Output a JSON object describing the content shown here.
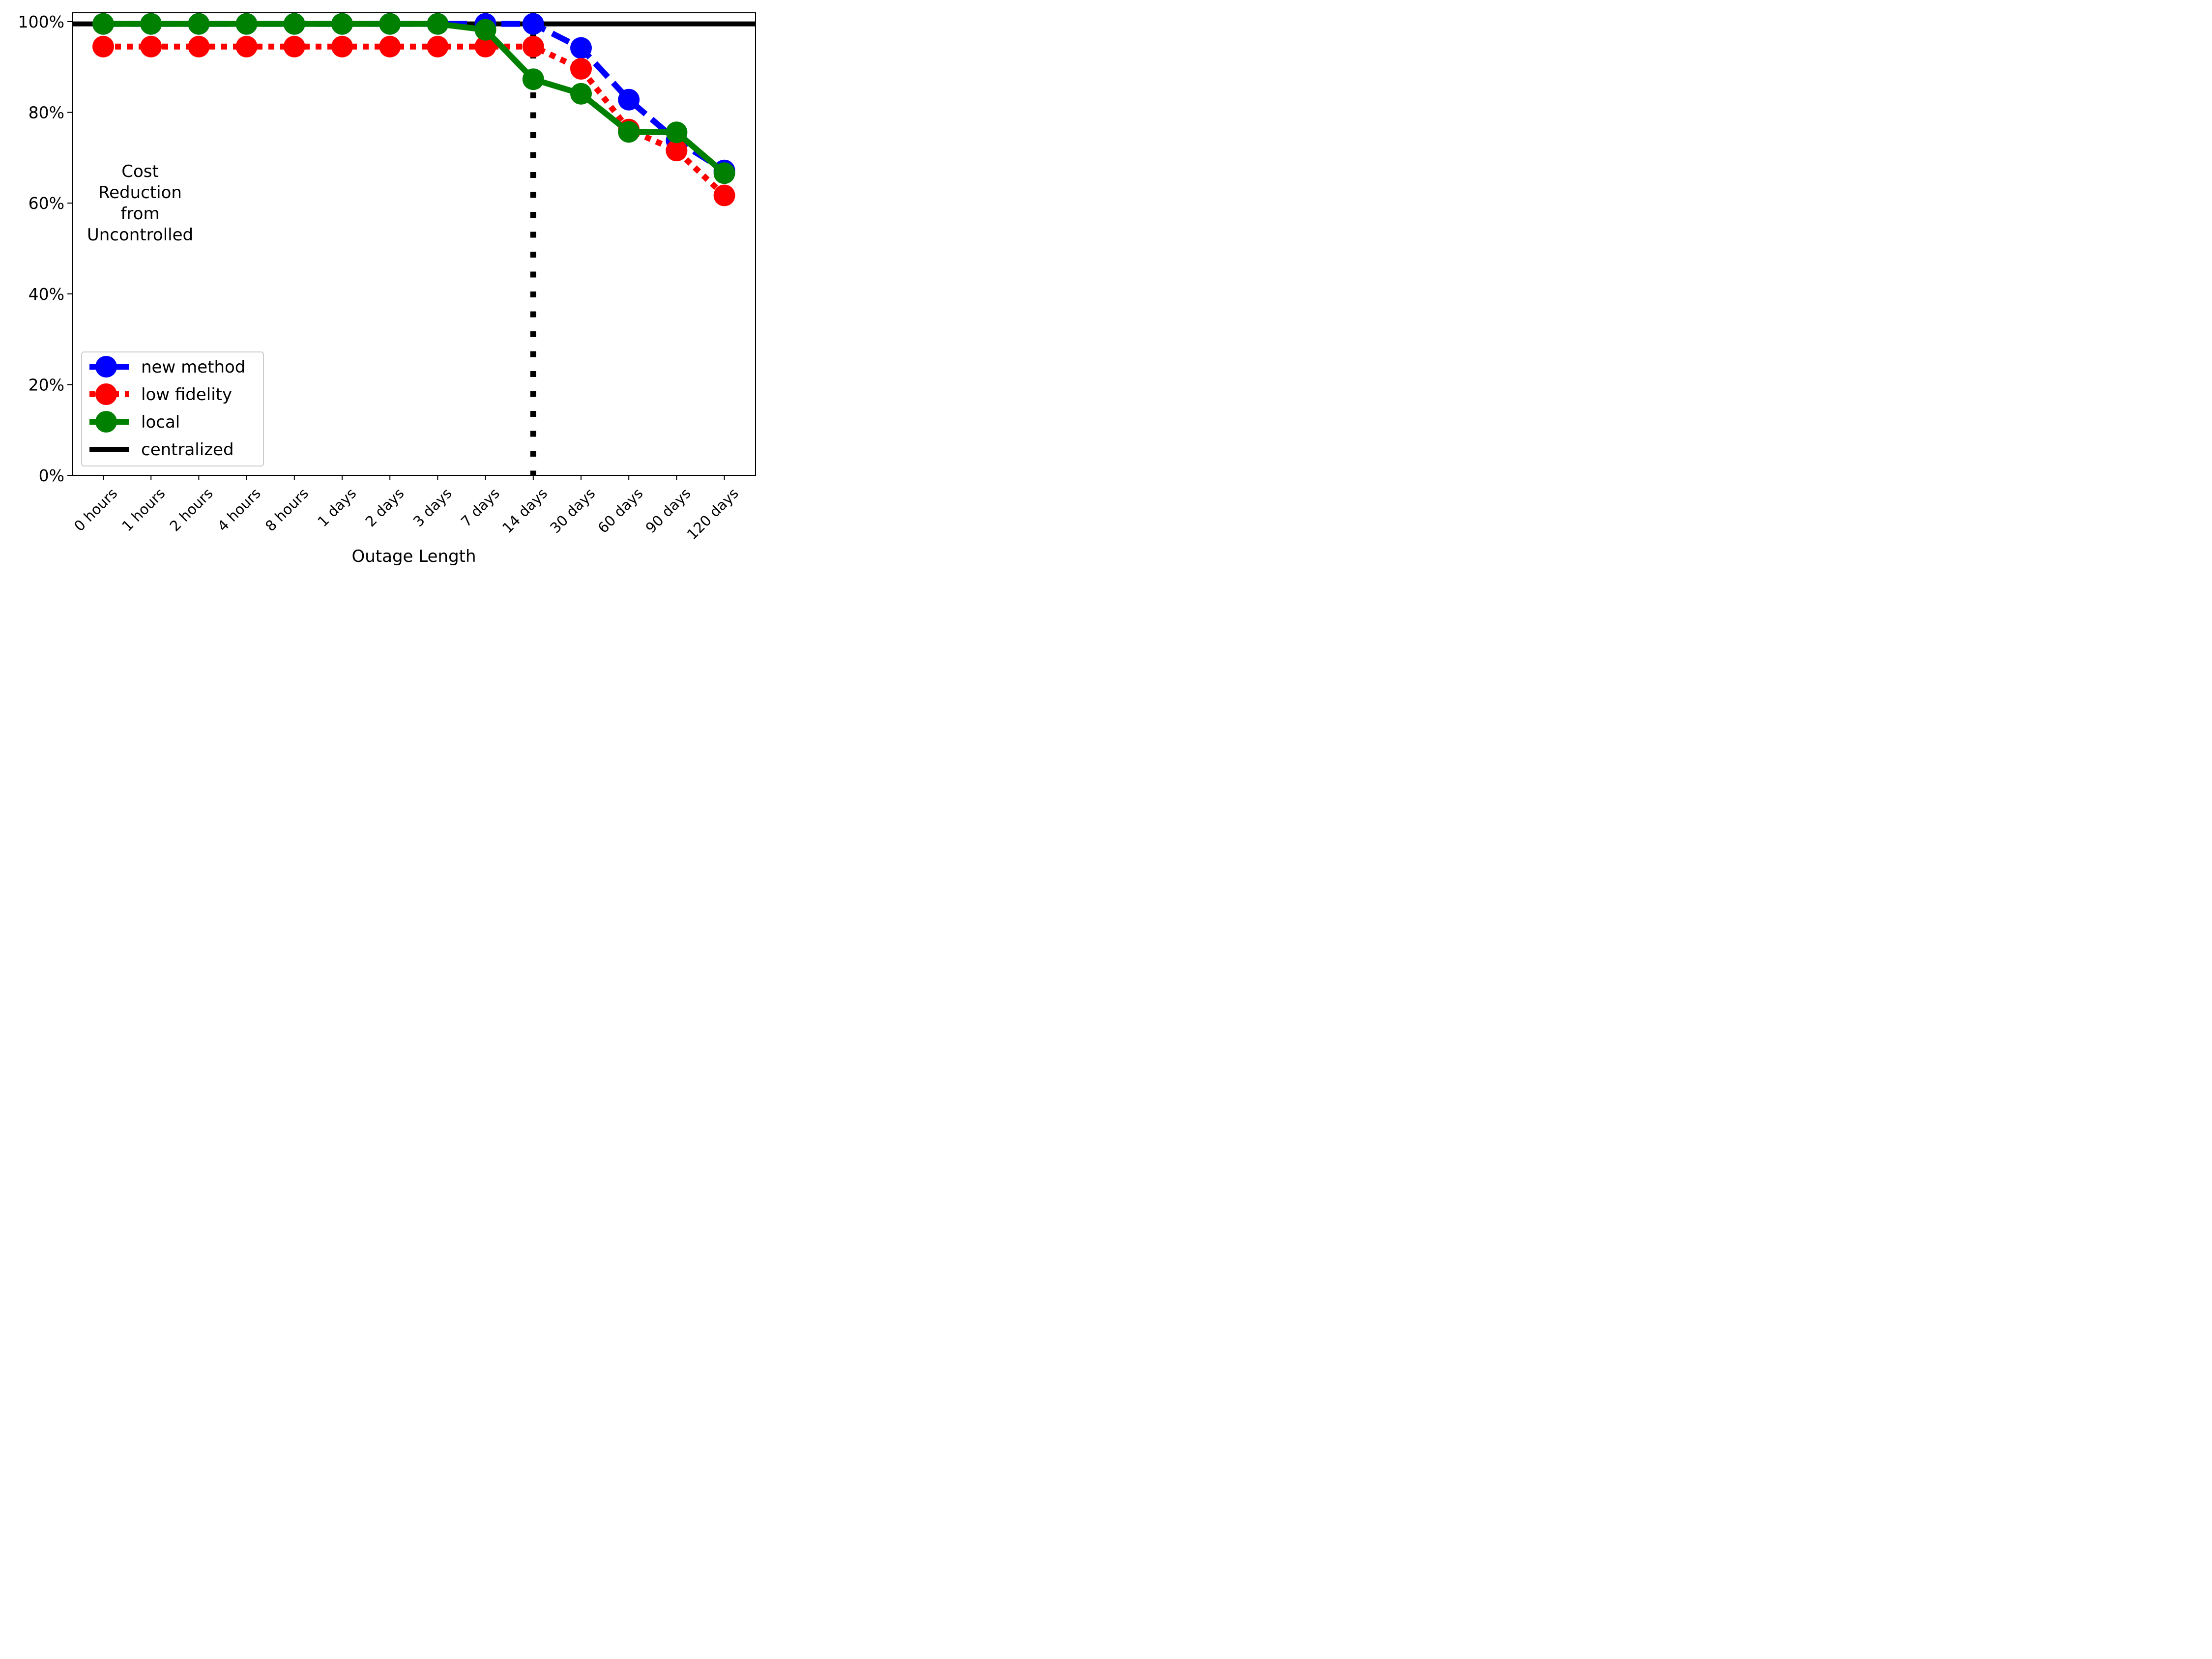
{
  "chart_data": {
    "type": "line",
    "title": "",
    "xlabel": "Outage Length",
    "ylabel": "",
    "side_label": [
      "Cost",
      "Reduction",
      "from",
      "Uncontrolled"
    ],
    "categories": [
      "0 hours",
      "1 hours",
      "2 hours",
      "4 hours",
      "8 hours",
      "1 days",
      "2 days",
      "3 days",
      "7 days",
      "14 days",
      "30 days",
      "60 days",
      "90 days",
      "120 days"
    ],
    "ylim": [
      0,
      100
    ],
    "yticks": [
      0,
      20,
      40,
      60,
      80,
      100
    ],
    "ytick_labels": [
      "0%",
      "20%",
      "40%",
      "60%",
      "80%",
      "100%"
    ],
    "grid": false,
    "legend_position": "lower-left",
    "series": [
      {
        "name": "new method",
        "color": "#0000ff",
        "linestyle": "dashed",
        "marker": "circle",
        "values": [
          99.5,
          99.5,
          99.5,
          99.5,
          99.5,
          99.5,
          99.5,
          99.5,
          99.5,
          99.5,
          94.2,
          82.8,
          73.8,
          67.2
        ]
      },
      {
        "name": "low fidelity",
        "color": "#ff0000",
        "linestyle": "dotted",
        "marker": "circle",
        "values": [
          94.5,
          94.5,
          94.5,
          94.5,
          94.5,
          94.5,
          94.5,
          94.5,
          94.5,
          94.5,
          89.6,
          76.2,
          71.6,
          61.7
        ]
      },
      {
        "name": "local",
        "color": "#008000",
        "linestyle": "solid",
        "marker": "circle",
        "values": [
          99.5,
          99.5,
          99.5,
          99.5,
          99.5,
          99.5,
          99.5,
          99.5,
          98.2,
          87.3,
          84.1,
          75.7,
          75.6,
          66.6
        ]
      }
    ],
    "reference_line": {
      "name": "centralized",
      "color": "#000000",
      "value": 99.5
    },
    "vertical_marker": {
      "category": "14 days",
      "color": "#000000",
      "linestyle": "dotted"
    }
  }
}
